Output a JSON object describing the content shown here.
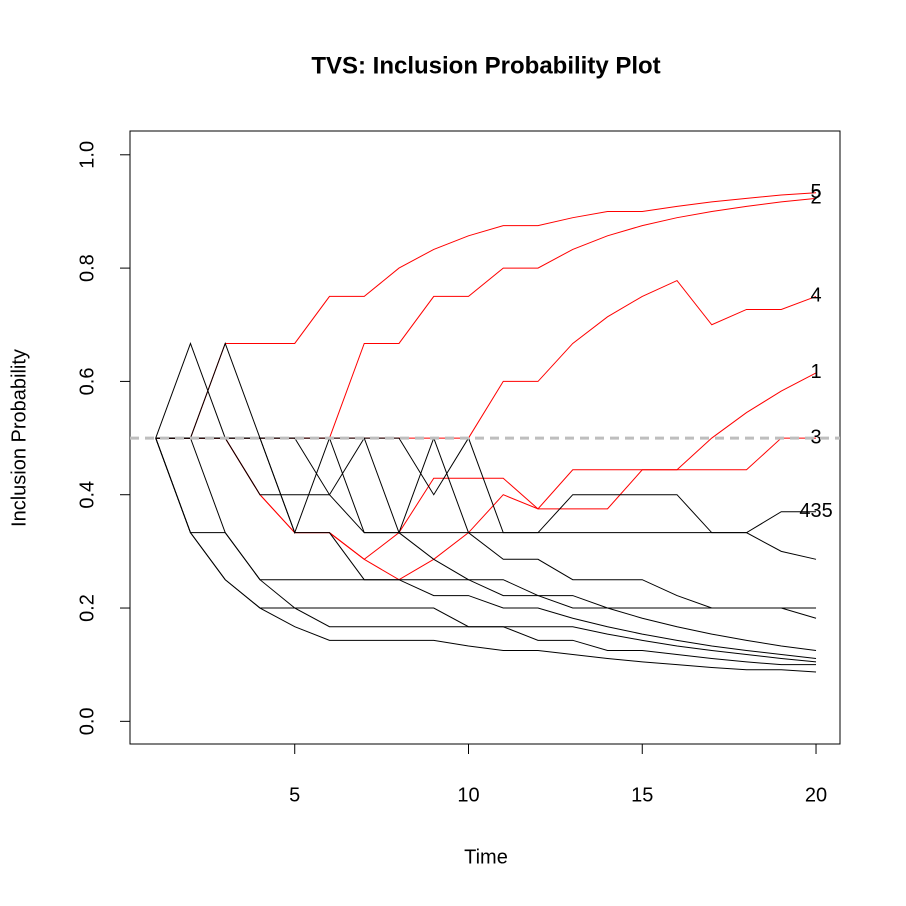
{
  "chart_data": {
    "type": "line",
    "title": "TVS: Inclusion Probability Plot",
    "x_label": "Time",
    "y_label": "Inclusion Probability",
    "x": [
      1,
      2,
      3,
      4,
      5,
      6,
      7,
      8,
      9,
      10,
      11,
      12,
      13,
      14,
      15,
      16,
      17,
      18,
      19,
      20
    ],
    "xlim": [
      0.26,
      20.69
    ],
    "xticks": [
      5,
      10,
      15,
      20
    ],
    "ylim": [
      -0.04,
      1.042
    ],
    "yticks": [
      {
        "value": 0,
        "label": "0.0"
      },
      0.2,
      0.4,
      0.6,
      0.8,
      {
        "value": 1,
        "label": "1.0"
      }
    ],
    "threshold": 0.5,
    "threshold_color": "#bebebe",
    "series": [
      {
        "name": "5",
        "color": "#ff0000",
        "values": [
          0.5,
          0.5,
          0.667,
          0.667,
          0.667,
          0.75,
          0.75,
          0.8,
          0.833,
          0.857,
          0.875,
          0.875,
          0.889,
          0.9,
          0.9,
          0.909,
          0.917,
          0.923,
          0.929,
          0.933
        ]
      },
      {
        "name": "2",
        "color": "#ff0000",
        "values": [
          0.5,
          0.5,
          0.5,
          0.5,
          0.5,
          0.5,
          0.667,
          0.667,
          0.75,
          0.75,
          0.8,
          0.8,
          0.833,
          0.857,
          0.875,
          0.889,
          0.9,
          0.909,
          0.917,
          0.923
        ]
      },
      {
        "name": "4",
        "color": "#ff0000",
        "values": [
          0.5,
          0.5,
          0.5,
          0.5,
          0.5,
          0.5,
          0.5,
          0.5,
          0.5,
          0.5,
          0.6,
          0.6,
          0.667,
          0.714,
          0.75,
          0.778,
          0.7,
          0.727,
          0.727,
          0.75
        ]
      },
      {
        "name": "1",
        "color": "#ff0000",
        "values": [
          0.5,
          0.5,
          0.5,
          0.4,
          0.333,
          0.333,
          0.286,
          0.333,
          0.429,
          0.429,
          0.429,
          0.375,
          0.375,
          0.375,
          0.444,
          0.444,
          0.5,
          0.545,
          0.583,
          0.615
        ]
      },
      {
        "name": "3",
        "color": "#ff0000",
        "values": [
          0.5,
          0.5,
          0.5,
          0.4,
          0.333,
          0.333,
          0.286,
          0.25,
          0.286,
          0.333,
          0.4,
          0.375,
          0.444,
          0.444,
          0.444,
          0.444,
          0.444,
          0.444,
          0.5,
          0.5
        ]
      },
      {
        "name": "435",
        "color": "#000000",
        "values": [
          0.5,
          0.5,
          0.5,
          0.4,
          0.4,
          0.4,
          0.333,
          0.333,
          0.333,
          0.333,
          0.333,
          0.333,
          0.333,
          0.333,
          0.333,
          0.333,
          0.333,
          0.333,
          0.37,
          0.37
        ]
      },
      {
        "name": null,
        "color": "#000000",
        "values": [
          0.5,
          0.333,
          0.25,
          0.2,
          0.167,
          0.143,
          0.143,
          0.143,
          0.143,
          0.133,
          0.125,
          0.125,
          0.118,
          0.111,
          0.105,
          0.1,
          0.095,
          0.091,
          0.091,
          0.087
        ]
      },
      {
        "name": null,
        "color": "#000000",
        "values": [
          0.5,
          0.5,
          0.333,
          0.25,
          0.2,
          0.2,
          0.2,
          0.2,
          0.2,
          0.167,
          0.167,
          0.143,
          0.143,
          0.125,
          0.125,
          0.118,
          0.111,
          0.105,
          0.1,
          0.1
        ]
      },
      {
        "name": null,
        "color": "#000000",
        "values": [
          0.5,
          0.667,
          0.5,
          0.5,
          0.333,
          0.333,
          0.25,
          0.25,
          0.222,
          0.222,
          0.2,
          0.2,
          0.182,
          0.167,
          0.154,
          0.143,
          0.133,
          0.125,
          0.118,
          0.111
        ]
      },
      {
        "name": null,
        "color": "#000000",
        "values": [
          0.5,
          0.5,
          0.667,
          0.5,
          0.5,
          0.5,
          0.333,
          0.333,
          0.286,
          0.25,
          0.25,
          0.222,
          0.2,
          0.2,
          0.182,
          0.167,
          0.154,
          0.143,
          0.133,
          0.125
        ]
      },
      {
        "name": null,
        "color": "#000000",
        "values": [
          0.5,
          0.5,
          0.5,
          0.5,
          0.333,
          0.5,
          0.5,
          0.333,
          0.5,
          0.333,
          0.286,
          0.286,
          0.25,
          0.25,
          0.25,
          0.222,
          0.2,
          0.2,
          0.2,
          0.182
        ]
      },
      {
        "name": null,
        "color": "#000000",
        "values": [
          0.5,
          0.333,
          0.333,
          0.25,
          0.25,
          0.25,
          0.25,
          0.25,
          0.25,
          0.25,
          0.222,
          0.222,
          0.222,
          0.2,
          0.2,
          0.2,
          0.2,
          0.2,
          0.2,
          0.2
        ]
      },
      {
        "name": null,
        "color": "#000000",
        "values": [
          0.5,
          0.5,
          0.5,
          0.5,
          0.5,
          0.4,
          0.5,
          0.5,
          0.4,
          0.5,
          0.333,
          0.333,
          0.4,
          0.4,
          0.4,
          0.4,
          0.333,
          0.333,
          0.3,
          0.286
        ]
      },
      {
        "name": null,
        "color": "#000000",
        "values": [
          0.5,
          0.333,
          0.25,
          0.2,
          0.2,
          0.167,
          0.167,
          0.167,
          0.167,
          0.167,
          0.167,
          0.167,
          0.167,
          0.154,
          0.143,
          0.133,
          0.125,
          0.118,
          0.111,
          0.105
        ]
      }
    ]
  }
}
